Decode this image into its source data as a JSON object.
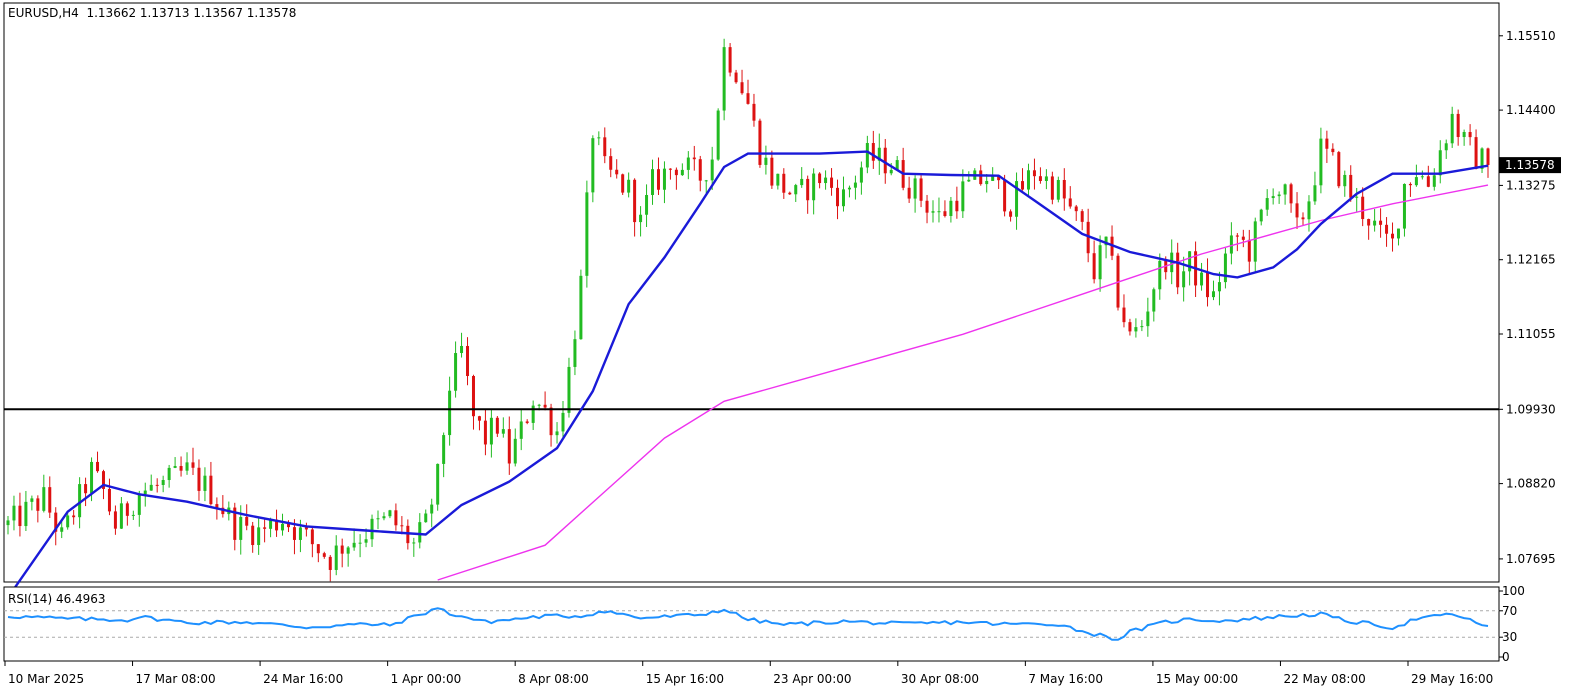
{
  "header": {
    "symbol": "EURUSD,H4",
    "ohlc": "1.13662 1.13713 1.13567 1.13578"
  },
  "rsi_header": {
    "label": "RSI(14) 46.4963"
  },
  "colors": {
    "bull": "#22bb22",
    "bear": "#dd1111",
    "ma_fast": "#1a1ad8",
    "ma_slow": "#ee33ee",
    "rsi_line": "#1e90ff",
    "hline": "#000000",
    "grid_level": "#aaaaaa"
  },
  "chart_data": [
    {
      "type": "candlestick",
      "title": "EURUSD,H4",
      "symbol": "EURUSD",
      "timeframe": "H4",
      "last_price": "1.13578",
      "price_axis_ticks": [
        "1.15510",
        "1.14400",
        "1.13275",
        "1.12165",
        "1.11055",
        "1.09930",
        "1.08820",
        "1.07695"
      ],
      "time_axis_ticks": [
        "10 Mar 2025",
        "17 Mar 08:00",
        "24 Mar 16:00",
        "1 Apr 00:00",
        "8 Apr 08:00",
        "15 Apr 16:00",
        "23 Apr 00:00",
        "30 Apr 08:00",
        "7 May 16:00",
        "15 May 00:00",
        "22 May 08:00",
        "29 May 16:00"
      ],
      "ylim": [
        1.0735,
        1.16
      ],
      "horizontal_line": 1.0993,
      "close_path": [
        [
          0,
          1.082
        ],
        [
          6,
          1.086
        ],
        [
          9,
          1.08
        ],
        [
          12,
          1.086
        ],
        [
          14,
          1.09
        ],
        [
          16,
          1.087
        ],
        [
          18,
          1.082
        ],
        [
          22,
          1.087
        ],
        [
          26,
          1.088
        ],
        [
          30,
          1.09
        ],
        [
          34,
          1.087
        ],
        [
          38,
          1.082
        ],
        [
          42,
          1.081
        ],
        [
          46,
          1.083
        ],
        [
          50,
          1.08
        ],
        [
          54,
          1.077
        ],
        [
          56,
          1.079
        ],
        [
          60,
          1.081
        ],
        [
          64,
          1.083
        ],
        [
          68,
          1.079
        ],
        [
          70,
          1.082
        ],
        [
          72,
          1.089
        ],
        [
          74,
          1.103
        ],
        [
          76,
          1.108
        ],
        [
          78,
          1.098
        ],
        [
          80,
          1.095
        ],
        [
          82,
          1.097
        ],
        [
          84,
          1.092
        ],
        [
          86,
          1.096
        ],
        [
          88,
          1.101
        ],
        [
          90,
          1.099
        ],
        [
          92,
          1.096
        ],
        [
          94,
          1.105
        ],
        [
          96,
          1.118
        ],
        [
          98,
          1.141
        ],
        [
          100,
          1.135
        ],
        [
          104,
          1.132
        ],
        [
          106,
          1.127
        ],
        [
          108,
          1.133
        ],
        [
          112,
          1.136
        ],
        [
          116,
          1.134
        ],
        [
          118,
          1.137
        ],
        [
          120,
          1.153
        ],
        [
          122,
          1.15
        ],
        [
          124,
          1.145
        ],
        [
          126,
          1.138
        ],
        [
          128,
          1.134
        ],
        [
          132,
          1.131
        ],
        [
          136,
          1.134
        ],
        [
          140,
          1.131
        ],
        [
          144,
          1.137
        ],
        [
          148,
          1.136
        ],
        [
          152,
          1.132
        ],
        [
          156,
          1.128
        ],
        [
          160,
          1.132
        ],
        [
          164,
          1.134
        ],
        [
          168,
          1.13
        ],
        [
          172,
          1.135
        ],
        [
          176,
          1.132
        ],
        [
          180,
          1.126
        ],
        [
          182,
          1.12
        ],
        [
          184,
          1.124
        ],
        [
          186,
          1.116
        ],
        [
          188,
          1.11
        ],
        [
          190,
          1.112
        ],
        [
          192,
          1.118
        ],
        [
          194,
          1.122
        ],
        [
          196,
          1.119
        ],
        [
          198,
          1.121
        ],
        [
          200,
          1.118
        ],
        [
          202,
          1.116
        ],
        [
          204,
          1.122
        ],
        [
          206,
          1.125
        ],
        [
          208,
          1.123
        ],
        [
          210,
          1.128
        ],
        [
          212,
          1.133
        ],
        [
          214,
          1.131
        ],
        [
          216,
          1.126
        ],
        [
          218,
          1.131
        ],
        [
          220,
          1.138
        ],
        [
          222,
          1.136
        ],
        [
          224,
          1.133
        ],
        [
          226,
          1.13
        ],
        [
          228,
          1.128
        ],
        [
          230,
          1.125
        ],
        [
          232,
          1.124
        ],
        [
          234,
          1.133
        ],
        [
          236,
          1.135
        ],
        [
          238,
          1.133
        ],
        [
          240,
          1.138
        ],
        [
          242,
          1.143
        ],
        [
          244,
          1.139
        ],
        [
          246,
          1.137
        ],
        [
          248,
          1.1358
        ]
      ],
      "candle_count": 249,
      "indicators": [
        {
          "type": "moving_average",
          "color": "#1a1ad8",
          "points": [
            [
              0,
              1.0712
            ],
            [
              10,
              1.084
            ],
            [
              16,
              1.088
            ],
            [
              22,
              1.0866
            ],
            [
              30,
              1.0855
            ],
            [
              40,
              1.0835
            ],
            [
              50,
              1.0818
            ],
            [
              60,
              1.0812
            ],
            [
              70,
              1.0806
            ],
            [
              76,
              1.085
            ],
            [
              84,
              1.0885
            ],
            [
              92,
              1.0935
            ],
            [
              98,
              1.102
            ],
            [
              104,
              1.115
            ],
            [
              110,
              1.122
            ],
            [
              116,
              1.13
            ],
            [
              120,
              1.1355
            ],
            [
              124,
              1.1375
            ],
            [
              136,
              1.1375
            ],
            [
              144,
              1.1378
            ],
            [
              150,
              1.1345
            ],
            [
              158,
              1.1343
            ],
            [
              166,
              1.1342
            ],
            [
              172,
              1.1305
            ],
            [
              180,
              1.1255
            ],
            [
              188,
              1.1228
            ],
            [
              196,
              1.1212
            ],
            [
              202,
              1.1195
            ],
            [
              206,
              1.119
            ],
            [
              212,
              1.1205
            ],
            [
              216,
              1.1232
            ],
            [
              220,
              1.127
            ],
            [
              226,
              1.1315
            ],
            [
              232,
              1.1345
            ],
            [
              240,
              1.1345
            ],
            [
              248,
              1.1357
            ]
          ]
        },
        {
          "type": "moving_average",
          "color": "#ee33ee",
          "points": [
            [
              72,
              1.0738
            ],
            [
              90,
              1.079
            ],
            [
              100,
              1.087
            ],
            [
              110,
              1.095
            ],
            [
              120,
              1.1005
            ],
            [
              140,
              1.1055
            ],
            [
              160,
              1.1105
            ],
            [
              180,
              1.1165
            ],
            [
              200,
              1.1225
            ],
            [
              220,
              1.1275
            ],
            [
              232,
              1.13
            ],
            [
              248,
              1.1328
            ]
          ]
        }
      ]
    },
    {
      "type": "line",
      "title": "RSI(14) 46.4963",
      "name": "RSI(14)",
      "current_value": "46.4963",
      "ylim": [
        0,
        100
      ],
      "y_axis_ticks": [
        "100",
        "70",
        "30",
        "0"
      ],
      "levels": [
        70,
        30
      ],
      "points": [
        [
          0,
          62
        ],
        [
          10,
          58
        ],
        [
          20,
          56
        ],
        [
          22,
          61
        ],
        [
          30,
          52
        ],
        [
          40,
          53
        ],
        [
          50,
          45
        ],
        [
          60,
          50
        ],
        [
          64,
          48
        ],
        [
          72,
          74
        ],
        [
          74,
          66
        ],
        [
          80,
          53
        ],
        [
          90,
          62
        ],
        [
          96,
          62
        ],
        [
          100,
          70
        ],
        [
          106,
          59
        ],
        [
          116,
          64
        ],
        [
          120,
          72
        ],
        [
          124,
          57
        ],
        [
          130,
          49
        ],
        [
          140,
          54
        ],
        [
          150,
          50
        ],
        [
          160,
          53
        ],
        [
          166,
          50
        ],
        [
          176,
          50
        ],
        [
          180,
          39
        ],
        [
          186,
          27
        ],
        [
          188,
          38
        ],
        [
          194,
          53
        ],
        [
          198,
          57
        ],
        [
          204,
          55
        ],
        [
          210,
          59
        ],
        [
          214,
          62
        ],
        [
          220,
          65
        ],
        [
          224,
          55
        ],
        [
          230,
          48
        ],
        [
          232,
          44
        ],
        [
          236,
          58
        ],
        [
          240,
          62
        ],
        [
          242,
          66
        ],
        [
          244,
          58
        ],
        [
          248,
          47
        ]
      ]
    }
  ]
}
